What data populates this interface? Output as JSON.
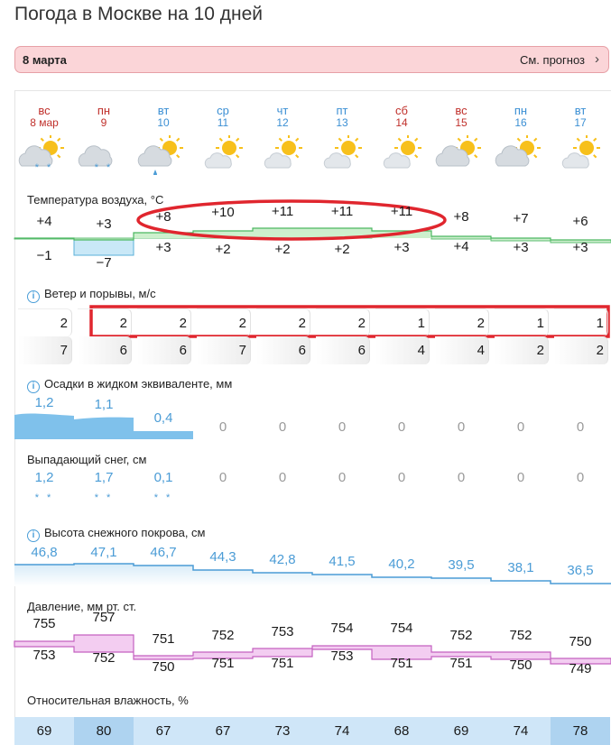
{
  "title": "Погода в Москве на 10 дней",
  "banner": {
    "date": "8 марта",
    "link": "См. прогноз",
    "chevron": "›"
  },
  "days": [
    {
      "dow": "вс",
      "date": "8 мар",
      "weekend": true,
      "icon": "cloud-sun-snow-icon"
    },
    {
      "dow": "пн",
      "date": "9",
      "weekend": true,
      "icon": "cloud-snow-icon"
    },
    {
      "dow": "вт",
      "date": "10",
      "weekend": false,
      "icon": "cloud-sun-rain-icon"
    },
    {
      "dow": "ср",
      "date": "11",
      "weekend": false,
      "icon": "sun-cloud-icon"
    },
    {
      "dow": "чт",
      "date": "12",
      "weekend": false,
      "icon": "sun-cloud-icon"
    },
    {
      "dow": "пт",
      "date": "13",
      "weekend": false,
      "icon": "sun-cloud-icon"
    },
    {
      "dow": "сб",
      "date": "14",
      "weekend": true,
      "icon": "sun-cloud-icon"
    },
    {
      "dow": "вс",
      "date": "15",
      "weekend": true,
      "icon": "cloud-sun-icon"
    },
    {
      "dow": "пн",
      "date": "16",
      "weekend": false,
      "icon": "cloud-sun-icon"
    },
    {
      "dow": "вт",
      "date": "17",
      "weekend": false,
      "icon": "sun-cloud-icon"
    }
  ],
  "sections": {
    "temp": "Температура воздуха, °C",
    "wind": "Ветер и порывы, м/с",
    "precip": "Осадки в жидком эквиваленте, мм",
    "snowfall": "Выпадающий снег, см",
    "snowdepth": "Высота снежного покрова, см",
    "pressure": "Давление, мм рт. ст.",
    "humidity": "Относительная влажность, %"
  },
  "temp_max": [
    "+4",
    "+3",
    "+8",
    "+10",
    "+11",
    "+11",
    "+11",
    "+8",
    "+7",
    "+6"
  ],
  "temp_min": [
    "−1",
    "−7",
    "+3",
    "+2",
    "+2",
    "+2",
    "+3",
    "+4",
    "+3",
    "+3"
  ],
  "wind": [
    "2",
    "2",
    "2",
    "2",
    "2",
    "2",
    "1",
    "2",
    "1",
    "1"
  ],
  "gust": [
    "7",
    "6",
    "6",
    "7",
    "6",
    "6",
    "4",
    "4",
    "2",
    "2"
  ],
  "precip": [
    "1,2",
    "1,1",
    "0,4",
    "0",
    "0",
    "0",
    "0",
    "0",
    "0",
    "0"
  ],
  "snowfall": [
    "1,2",
    "1,7",
    "0,1",
    "0",
    "0",
    "0",
    "0",
    "0",
    "0",
    "0"
  ],
  "snowfall_icon": [
    "* *",
    "* *",
    "* *",
    "",
    "",
    "",
    "",
    "",
    "",
    ""
  ],
  "snowdepth": [
    "46,8",
    "47,1",
    "46,7",
    "44,3",
    "42,8",
    "41,5",
    "40,2",
    "39,5",
    "38,1",
    "36,5"
  ],
  "pressure_max": [
    "755",
    "757",
    "751",
    "752",
    "753",
    "754",
    "754",
    "752",
    "752",
    "750"
  ],
  "pressure_min": [
    "753",
    "752",
    "750",
    "751",
    "751",
    "753",
    "751",
    "751",
    "750",
    "749"
  ],
  "humidity": [
    "69",
    "80",
    "67",
    "67",
    "73",
    "74",
    "68",
    "69",
    "74",
    "78"
  ],
  "colors": {
    "weekend": "#c0302b",
    "weekday": "#3b8fd4",
    "highlight": "#e0262e"
  }
}
